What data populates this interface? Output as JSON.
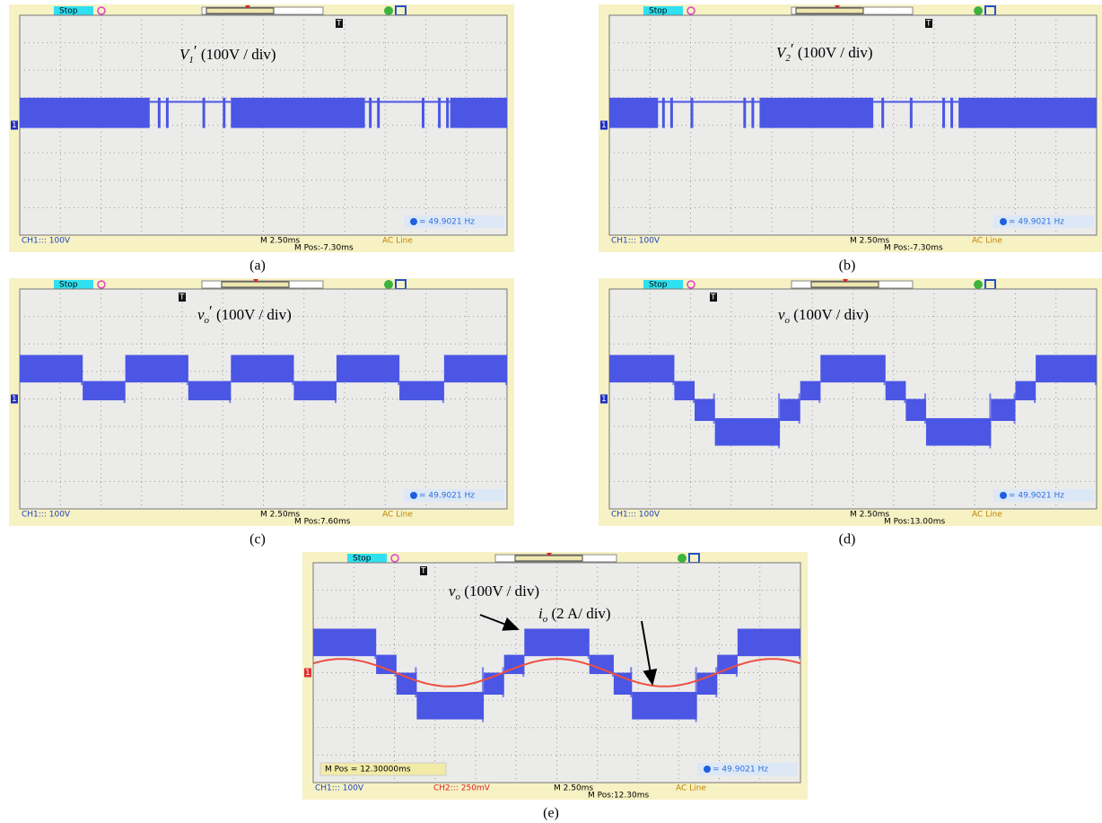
{
  "panels": [
    {
      "caption": "(a)",
      "status": "Stop",
      "trace": {
        "symbol": "V",
        "sub": "1",
        "prime": "′",
        "scale": " (100V / div)"
      },
      "ch_marker": "1",
      "trigger_marker": "T",
      "ch1": "CH1::: 100V",
      "timebase": "M 2.50ms",
      "mpos": "M Pos:-7.30ms",
      "trigger": "AC Line",
      "freq": "= 49.9021 Hz"
    },
    {
      "caption": "(b)",
      "status": "Stop",
      "trace": {
        "symbol": "V",
        "sub": "2",
        "prime": "′",
        "scale": " (100V / div)"
      },
      "ch_marker": "1",
      "trigger_marker": "T",
      "ch1": "CH1::: 100V",
      "timebase": "M 2.50ms",
      "mpos": "M Pos:-7.30ms",
      "trigger": "AC Line",
      "freq": "= 49.9021 Hz"
    },
    {
      "caption": "(c)",
      "status": "Stop",
      "trace": {
        "symbol": "v",
        "sub": "o",
        "prime": "′",
        "scale": " (100V / div)"
      },
      "ch_marker": "1",
      "trigger_marker": "T",
      "ch1": "CH1::: 100V",
      "timebase": "M 2.50ms",
      "mpos": "M Pos:7.60ms",
      "trigger": "AC Line",
      "freq": "= 49.9021 Hz"
    },
    {
      "caption": "(d)",
      "status": "Stop",
      "trace": {
        "symbol": "v",
        "sub": "o",
        "scale": " (100V / div)"
      },
      "ch_marker": "1",
      "trigger_marker": "T",
      "ch1": "CH1::: 100V",
      "timebase": "M 2.50ms",
      "mpos": "M Pos:13.00ms",
      "trigger": "AC Line",
      "freq": "= 49.9021 Hz"
    },
    {
      "caption": "(e)",
      "status": "Stop",
      "trace": {
        "symbol": "v",
        "sub": "o",
        "scale": " (100V / div)"
      },
      "current": {
        "symbol": "i",
        "sub": "o",
        "scale": " (2 A/ div)"
      },
      "ch_marker": "1",
      "trigger_marker": "T",
      "ch1": "CH1::: 100V",
      "ch2": "CH2::: 250mV",
      "timebase": "M 2.50ms",
      "mpos": "M Pos:12.30ms",
      "mpos_box": "M Pos = 12.30000ms",
      "trigger": "AC Line",
      "freq": "= 49.9021 Hz"
    }
  ]
}
